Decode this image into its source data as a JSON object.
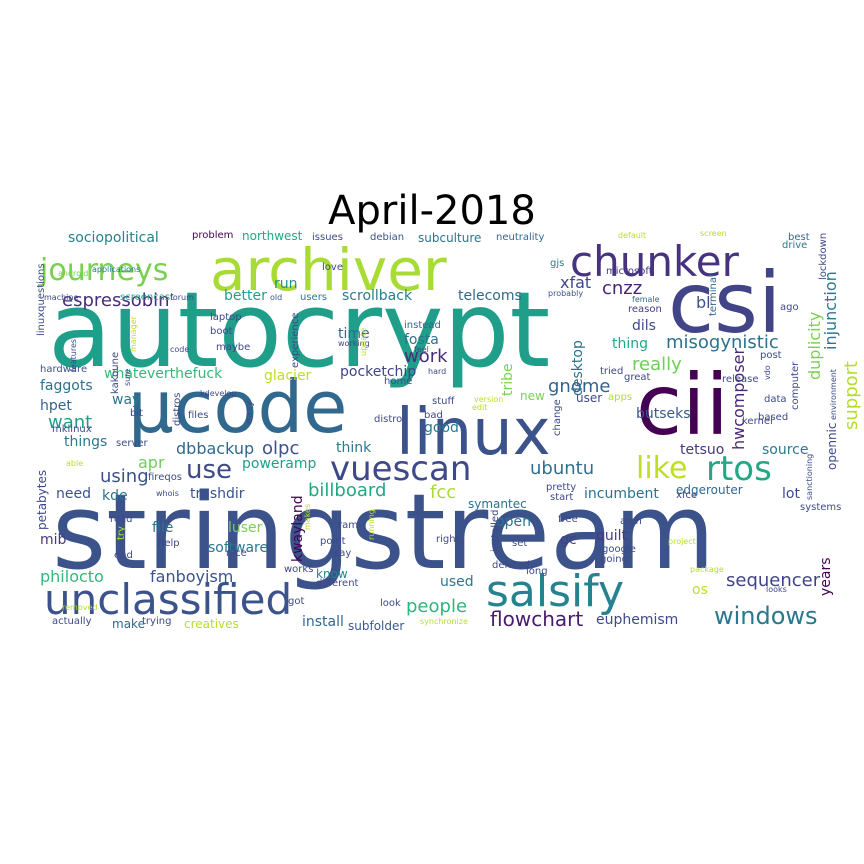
{
  "title": "April-2018",
  "words": [
    {
      "text": "autocrypt",
      "color": "#1f9e89"
    },
    {
      "text": "stringstream",
      "color": "#3b528b"
    },
    {
      "text": "archiver",
      "color": "#a8db34"
    },
    {
      "text": "csi",
      "color": "#414487"
    },
    {
      "text": "cii",
      "color": "#440154"
    },
    {
      "text": "µcode",
      "color": "#31688e"
    },
    {
      "text": "linux",
      "color": "#3b528b"
    },
    {
      "text": "chunker",
      "color": "#46327e"
    },
    {
      "text": "vuescan",
      "color": "#3e4989"
    },
    {
      "text": "unclassified",
      "color": "#3b528b"
    },
    {
      "text": "salsify",
      "color": "#26828e"
    },
    {
      "text": "rtos",
      "color": "#22a884"
    },
    {
      "text": "journeys",
      "color": "#7ad151"
    },
    {
      "text": "like",
      "color": "#bddf26"
    },
    {
      "text": "windows",
      "color": "#2a788e"
    },
    {
      "text": "use",
      "color": "#3e4989"
    },
    {
      "text": "espressobin",
      "color": "#472d7b"
    },
    {
      "text": "misogynistic",
      "color": "#2c728e"
    },
    {
      "text": "sequencer",
      "color": "#414487"
    },
    {
      "text": "flowchart",
      "color": "#481b6d"
    },
    {
      "text": "people",
      "color": "#2fb47c"
    },
    {
      "text": "work",
      "color": "#472d7b"
    },
    {
      "text": "really",
      "color": "#6ece58"
    },
    {
      "text": "gnome",
      "color": "#33638d"
    },
    {
      "text": "cnzz",
      "color": "#482475"
    },
    {
      "text": "xfat",
      "color": "#3e4989"
    },
    {
      "text": "support",
      "color": "#b5de2b"
    },
    {
      "text": "injunction",
      "color": "#2a788e"
    },
    {
      "text": "duplicity",
      "color": "#7ad151"
    },
    {
      "text": "hwcomposer",
      "color": "#482878"
    },
    {
      "text": "years",
      "color": "#440154"
    },
    {
      "text": "billboard",
      "color": "#22a884"
    },
    {
      "text": "ubuntu",
      "color": "#2c728e"
    },
    {
      "text": "fcc",
      "color": "#a8db34"
    },
    {
      "text": "olpc",
      "color": "#3b528b"
    },
    {
      "text": "dbbackup",
      "color": "#31688e"
    },
    {
      "text": "using",
      "color": "#3b528b"
    },
    {
      "text": "apr",
      "color": "#6ece58"
    },
    {
      "text": "want",
      "color": "#1f9e89"
    },
    {
      "text": "whateverthefuck",
      "color": "#35b779"
    },
    {
      "text": "olpc",
      "color": "#31688e"
    },
    {
      "text": "fanboyism",
      "color": "#3b528b"
    },
    {
      "text": "philocto",
      "color": "#35b779"
    },
    {
      "text": "euphemism",
      "color": "#3e4989"
    },
    {
      "text": "telecoms",
      "color": "#31688e"
    },
    {
      "text": "scrollback",
      "color": "#277f8e"
    },
    {
      "text": "sociopolitical",
      "color": "#26828e"
    },
    {
      "text": "pocketchip",
      "color": "#414487"
    },
    {
      "text": "glacier",
      "color": "#bddf26"
    },
    {
      "text": "better",
      "color": "#1f9e89"
    },
    {
      "text": "run",
      "color": "#21918c"
    },
    {
      "text": "time",
      "color": "#31688e"
    },
    {
      "text": "fosta",
      "color": "#2c728e"
    },
    {
      "text": "desktop",
      "color": "#2c728e"
    },
    {
      "text": "tribe",
      "color": "#7ad151"
    },
    {
      "text": "poweramp",
      "color": "#1f9e89"
    },
    {
      "text": "trashdir",
      "color": "#3b528b"
    },
    {
      "text": "faggots",
      "color": "#2c728e"
    },
    {
      "text": "hpet",
      "color": "#33638d"
    },
    {
      "text": "things",
      "color": "#2a788e"
    },
    {
      "text": "need",
      "color": "#3b528b"
    },
    {
      "text": "kde",
      "color": "#2c728e"
    },
    {
      "text": "mib",
      "color": "#443983"
    },
    {
      "text": "file",
      "color": "#2c728e"
    },
    {
      "text": "luser",
      "color": "#7ad151"
    },
    {
      "text": "software",
      "color": "#2a788e"
    },
    {
      "text": "kwayland",
      "color": "#440154"
    },
    {
      "text": "know",
      "color": "#26828e"
    },
    {
      "text": "install",
      "color": "#31688e"
    },
    {
      "text": "subfolder",
      "color": "#38598c"
    },
    {
      "text": "make",
      "color": "#31688e"
    },
    {
      "text": "creatives",
      "color": "#b5de2b"
    },
    {
      "text": "used",
      "color": "#2a788e"
    },
    {
      "text": "open",
      "color": "#2c728e"
    },
    {
      "text": "quilt",
      "color": "#443983"
    },
    {
      "text": "incumbent",
      "color": "#2c728e"
    },
    {
      "text": "butseks",
      "color": "#38598c"
    },
    {
      "text": "tetsuo",
      "color": "#453781"
    },
    {
      "text": "source",
      "color": "#2a788e"
    },
    {
      "text": "lot",
      "color": "#3e4989"
    },
    {
      "text": "edgerouter",
      "color": "#31688e"
    },
    {
      "text": "bl",
      "color": "#3b528b"
    },
    {
      "text": "dils",
      "color": "#3e4989"
    },
    {
      "text": "thing",
      "color": "#22a884"
    },
    {
      "text": "gc",
      "color": "#433e85"
    },
    {
      "text": "os",
      "color": "#bddf26"
    },
    {
      "text": "good",
      "color": "#2a788e"
    },
    {
      "text": "think",
      "color": "#2a788e"
    },
    {
      "text": "symantec",
      "color": "#2c728e"
    },
    {
      "text": "new",
      "color": "#7ad151"
    },
    {
      "text": "user",
      "color": "#3e4989"
    },
    {
      "text": "way",
      "color": "#2a788e"
    },
    {
      "text": "subculture",
      "color": "#2c728e"
    },
    {
      "text": "northwest",
      "color": "#22a884"
    },
    {
      "text": "neutrality",
      "color": "#31688e"
    },
    {
      "text": "issues",
      "color": "#3e4989"
    },
    {
      "text": "debian",
      "color": "#3b528b"
    },
    {
      "text": "problem",
      "color": "#440154"
    },
    {
      "text": "love",
      "color": "#3e4989"
    },
    {
      "text": "gjs",
      "color": "#2a788e"
    },
    {
      "text": "opennic",
      "color": "#3e4989"
    },
    {
      "text": "lockdown",
      "color": "#3e4989"
    },
    {
      "text": "drive",
      "color": "#2a788e"
    },
    {
      "text": "best",
      "color": "#31688e"
    },
    {
      "text": "screen",
      "color": "#b5de2b"
    },
    {
      "text": "default",
      "color": "#bddf26"
    },
    {
      "text": "microsoft",
      "color": "#443983"
    },
    {
      "text": "applications",
      "color": "#2a788e"
    },
    {
      "text": "android",
      "color": "#7ad151"
    },
    {
      "text": "machine",
      "color": "#3e4989"
    },
    {
      "text": "screencast",
      "color": "#22a884"
    },
    {
      "text": "forum",
      "color": "#3e4989"
    },
    {
      "text": "old",
      "color": "#3b528b"
    },
    {
      "text": "users",
      "color": "#2a788e"
    },
    {
      "text": "probably",
      "color": "#3b528b"
    },
    {
      "text": "female",
      "color": "#31688e"
    },
    {
      "text": "reason",
      "color": "#433e85"
    },
    {
      "text": "terminal",
      "color": "#31688e"
    },
    {
      "text": "ago",
      "color": "#3e4989"
    },
    {
      "text": "environment",
      "color": "#3e4989"
    },
    {
      "text": "linuxquestions",
      "color": "#3e4989"
    },
    {
      "text": "hardware",
      "color": "#3b528b"
    },
    {
      "text": "features",
      "color": "#3e4989"
    },
    {
      "text": "manager",
      "color": "#b5de2b"
    },
    {
      "text": "laptop",
      "color": "#3e4989"
    },
    {
      "text": "boot",
      "color": "#3e4989"
    },
    {
      "text": "code",
      "color": "#3e4989"
    },
    {
      "text": "maybe",
      "color": "#3e4989"
    },
    {
      "text": "experience",
      "color": "#3e4989"
    },
    {
      "text": "working",
      "color": "#3e4989"
    },
    {
      "text": "instead",
      "color": "#31688e"
    },
    {
      "text": "feel",
      "color": "#3e4989"
    },
    {
      "text": "hard",
      "color": "#3e4989"
    },
    {
      "text": "home",
      "color": "#3e4989"
    },
    {
      "text": "update",
      "color": "#b5de2b"
    },
    {
      "text": "post",
      "color": "#3e4989"
    },
    {
      "text": "release",
      "color": "#3e4989"
    },
    {
      "text": "great",
      "color": "#3e4989"
    },
    {
      "text": "tried",
      "color": "#3e4989"
    },
    {
      "text": "vdo",
      "color": "#3e4989"
    },
    {
      "text": "data",
      "color": "#3e4989"
    },
    {
      "text": "computer",
      "color": "#3e4989"
    },
    {
      "text": "based",
      "color": "#3e4989"
    },
    {
      "text": "kernel",
      "color": "#3e4989"
    },
    {
      "text": "sanctioning",
      "color": "#3e4989"
    },
    {
      "text": "systems",
      "color": "#3e4989"
    },
    {
      "text": "apps",
      "color": "#b5de2b"
    },
    {
      "text": "stuff",
      "color": "#3e4989"
    },
    {
      "text": "version",
      "color": "#b5de2b"
    },
    {
      "text": "edit",
      "color": "#b5de2b"
    },
    {
      "text": "bad",
      "color": "#3e4989"
    },
    {
      "text": "distro",
      "color": "#3e4989"
    },
    {
      "text": "kakoune",
      "color": "#3e4989"
    },
    {
      "text": "bit",
      "color": "#3e4989"
    },
    {
      "text": "distros",
      "color": "#3e4989"
    },
    {
      "text": "files",
      "color": "#3e4989"
    },
    {
      "text": "easy",
      "color": "#3e4989"
    },
    {
      "text": "server",
      "color": "#3e4989"
    },
    {
      "text": "kdevelop",
      "color": "#3e4989"
    },
    {
      "text": "sure",
      "color": "#3e4989"
    },
    {
      "text": "mklinux",
      "color": "#3e4989"
    },
    {
      "text": "able",
      "color": "#b5de2b"
    },
    {
      "text": "whois",
      "color": "#3e4989"
    },
    {
      "text": "fireqos",
      "color": "#3e4989"
    },
    {
      "text": "petabytes",
      "color": "#3e4989"
    },
    {
      "text": "makes",
      "color": "#b5de2b"
    },
    {
      "text": "ram",
      "color": "#3e4989"
    },
    {
      "text": "running",
      "color": "#b5de2b"
    },
    {
      "text": "free",
      "color": "#3e4989"
    },
    {
      "text": "arch",
      "color": "#3e4989"
    },
    {
      "text": "xfce",
      "color": "#3e4989"
    },
    {
      "text": "start",
      "color": "#3e4989"
    },
    {
      "text": "pretty",
      "color": "#3e4989"
    },
    {
      "text": "change",
      "color": "#3e4989"
    },
    {
      "text": "installed",
      "color": "#3e4989"
    },
    {
      "text": "set",
      "color": "#3e4989"
    },
    {
      "text": "right",
      "color": "#3e4989"
    },
    {
      "text": "point",
      "color": "#3e4989"
    },
    {
      "text": "say",
      "color": "#3e4989"
    },
    {
      "text": "nice",
      "color": "#3e4989"
    },
    {
      "text": "help",
      "color": "#3e4989"
    },
    {
      "text": "end",
      "color": "#3e4989"
    },
    {
      "text": "read",
      "color": "#3e4989"
    },
    {
      "text": "try",
      "color": "#b5de2b"
    },
    {
      "text": "works",
      "color": "#3e4989"
    },
    {
      "text": "different",
      "color": "#3e4989"
    },
    {
      "text": "got",
      "color": "#3e4989"
    },
    {
      "text": "look",
      "color": "#3e4989"
    },
    {
      "text": "removed",
      "color": "#b5de2b"
    },
    {
      "text": "actually",
      "color": "#3e4989"
    },
    {
      "text": "trying",
      "color": "#3e4989"
    },
    {
      "text": "synchronize",
      "color": "#b5de2b"
    },
    {
      "text": "deleted",
      "color": "#3e4989"
    },
    {
      "text": "long",
      "color": "#3e4989"
    },
    {
      "text": "going",
      "color": "#3e4989"
    },
    {
      "text": "google",
      "color": "#3e4989"
    },
    {
      "text": "project",
      "color": "#b5de2b"
    },
    {
      "text": "package",
      "color": "#b5de2b"
    },
    {
      "text": "looks",
      "color": "#3e4989"
    }
  ]
}
